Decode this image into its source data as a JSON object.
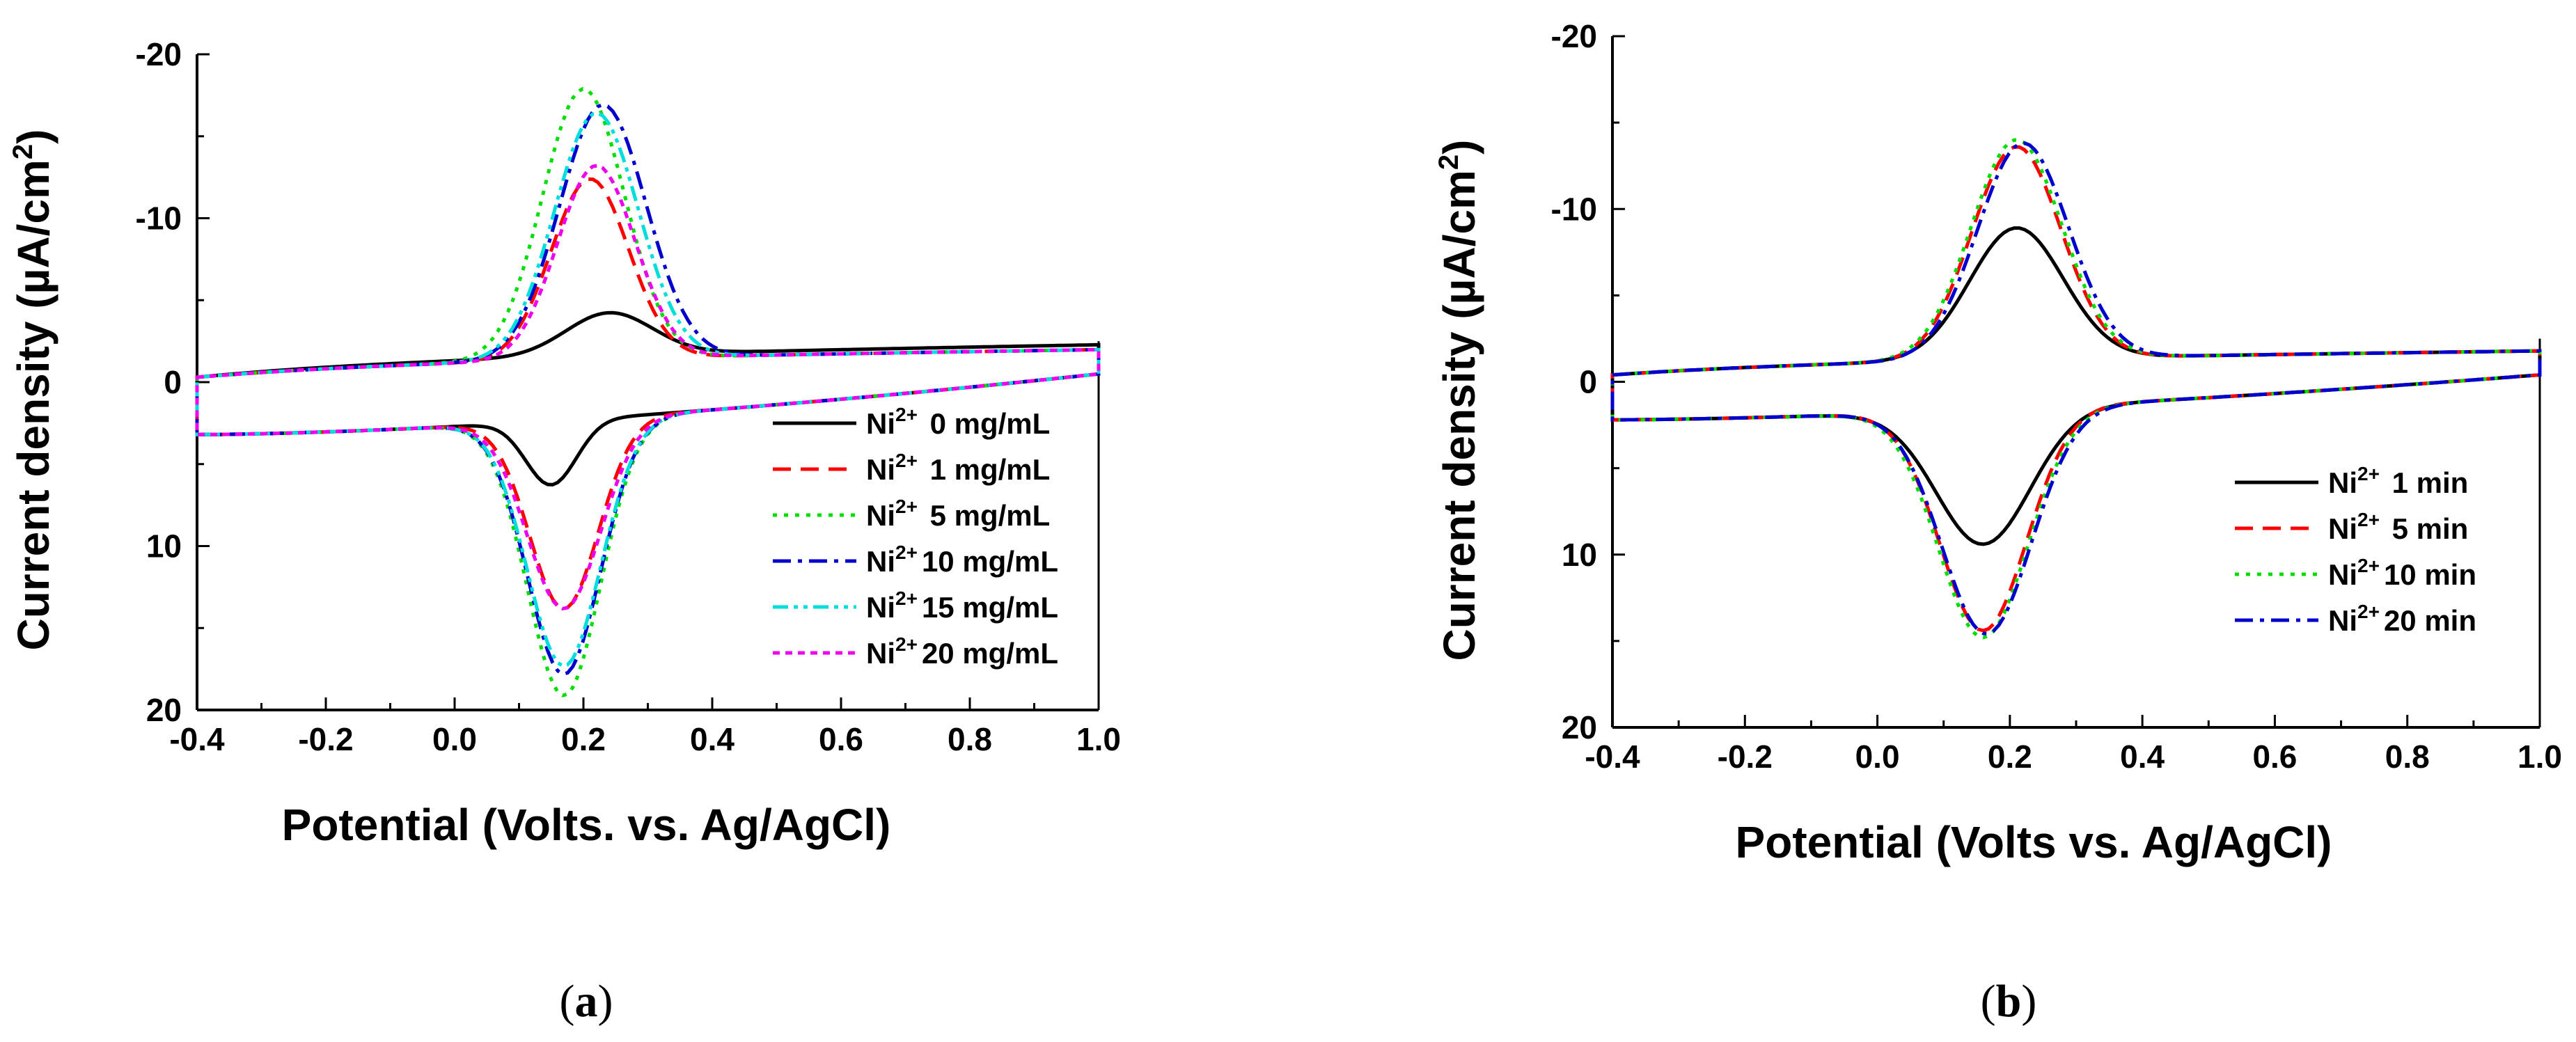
{
  "chart_data": [
    {
      "type": "line",
      "panel_label": "a",
      "xlabel": "Potential (Volts. vs. Ag/AgCl)",
      "ylabel_main": "Current density (",
      "ylabel_unit": "µA/cm",
      "ylabel_sup": "2",
      "ylabel_close": ")",
      "xlim": [
        -0.4,
        1.0
      ],
      "ylim": [
        20,
        -20
      ],
      "xticks": [
        "-0.4",
        "-0.2",
        "0.0",
        "0.2",
        "0.4",
        "0.6",
        "0.8",
        "1.0"
      ],
      "yticks": [
        "-20",
        "-10",
        "0",
        "10",
        "20"
      ],
      "legend_position": "bottom-right",
      "series": [
        {
          "ion": "Ni",
          "charge": "2+",
          "label": "  0 mg/mL",
          "color": "#000000",
          "dash": "solid",
          "ox_peak": -2.6,
          "ox_e": 0.24,
          "ox_w": 0.095,
          "red_peak": 3.9,
          "red_e": 0.15,
          "red_w": 0.055,
          "base_top_start": -0.3,
          "base_top_end": -2.3,
          "base_bot_start": 3.2,
          "base_bot_end": -0.5
        },
        {
          "ion": "Ni",
          "charge": "2+",
          "label": "  1 mg/mL",
          "color": "#ff0000",
          "dash": "dash",
          "ox_peak": -11.0,
          "ox_e": 0.21,
          "ox_w": 0.085,
          "red_peak": 11.5,
          "red_e": 0.17,
          "red_w": 0.075,
          "base_top_start": -0.3,
          "base_top_end": -2.0,
          "base_bot_start": 3.2,
          "base_bot_end": -0.5
        },
        {
          "ion": "Ni",
          "charge": "2+",
          "label": "  5 mg/mL",
          "color": "#00dd00",
          "dash": "dot",
          "ox_peak": -16.5,
          "ox_e": 0.2,
          "ox_w": 0.09,
          "red_peak": 16.8,
          "red_e": 0.17,
          "red_w": 0.08,
          "base_top_start": -0.3,
          "base_top_end": -2.0,
          "base_bot_start": 3.2,
          "base_bot_end": -0.5
        },
        {
          "ion": "Ni",
          "charge": "2+",
          "label": "10 mg/mL",
          "color": "#0000cc",
          "dash": "dashdot",
          "ox_peak": -15.5,
          "ox_e": 0.23,
          "ox_w": 0.095,
          "red_peak": 15.5,
          "red_e": 0.17,
          "red_w": 0.08,
          "base_top_start": -0.3,
          "base_top_end": -2.0,
          "base_bot_start": 3.2,
          "base_bot_end": -0.5
        },
        {
          "ion": "Ni",
          "charge": "2+",
          "label": "15 mg/mL",
          "color": "#00dddd",
          "dash": "dashdotdot",
          "ox_peak": -15.0,
          "ox_e": 0.22,
          "ox_w": 0.092,
          "red_peak": 15.0,
          "red_e": 0.17,
          "red_w": 0.08,
          "base_top_start": -0.3,
          "base_top_end": -2.0,
          "base_bot_start": 3.2,
          "base_bot_end": -0.5
        },
        {
          "ion": "Ni",
          "charge": "2+",
          "label": "20 mg/mL",
          "color": "#ee00ee",
          "dash": "shortdot",
          "ox_peak": -11.8,
          "ox_e": 0.22,
          "ox_w": 0.085,
          "red_peak": 11.5,
          "red_e": 0.17,
          "red_w": 0.08,
          "base_top_start": -0.3,
          "base_top_end": -2.0,
          "base_bot_start": 3.2,
          "base_bot_end": -0.5
        }
      ]
    },
    {
      "type": "line",
      "panel_label": "b",
      "xlabel": "Potential (Volts vs. Ag/AgCl)",
      "ylabel_main": "Current density (",
      "ylabel_unit": "µA/cm",
      "ylabel_sup": "2",
      "ylabel_close": ")",
      "xlim": [
        -0.4,
        1.0
      ],
      "ylim": [
        20,
        -20
      ],
      "xticks": [
        "-0.4",
        "-0.2",
        "0.0",
        "0.2",
        "0.4",
        "0.6",
        "0.8",
        "1.0"
      ],
      "yticks": [
        "-20",
        "-10",
        "0",
        "10",
        "20"
      ],
      "legend_position": "bottom-right",
      "series": [
        {
          "ion": "Ni",
          "charge": "2+",
          "label": "  1 min",
          "color": "#000000",
          "dash": "solid",
          "ox_peak": -7.6,
          "ox_e": 0.21,
          "ox_w": 0.1,
          "red_peak": 7.8,
          "red_e": 0.16,
          "red_w": 0.1,
          "base_top_start": -0.4,
          "base_top_end": -1.8,
          "base_bot_start": 2.2,
          "base_bot_end": -0.4
        },
        {
          "ion": "Ni",
          "charge": "2+",
          "label": "  5 min",
          "color": "#ff0000",
          "dash": "dash",
          "ox_peak": -12.3,
          "ox_e": 0.21,
          "ox_w": 0.095,
          "red_peak": 12.8,
          "red_e": 0.16,
          "red_w": 0.092,
          "base_top_start": -0.4,
          "base_top_end": -1.8,
          "base_bot_start": 2.2,
          "base_bot_end": -0.4
        },
        {
          "ion": "Ni",
          "charge": "2+",
          "label": "10 min",
          "color": "#00dd00",
          "dash": "dot",
          "ox_peak": -12.7,
          "ox_e": 0.21,
          "ox_w": 0.097,
          "red_peak": 13.2,
          "red_e": 0.16,
          "red_w": 0.095,
          "base_top_start": -0.4,
          "base_top_end": -1.8,
          "base_bot_start": 2.2,
          "base_bot_end": -0.4
        },
        {
          "ion": "Ni",
          "charge": "2+",
          "label": "20 min",
          "color": "#0000cc",
          "dash": "dashdot",
          "ox_peak": -12.5,
          "ox_e": 0.22,
          "ox_w": 0.097,
          "red_peak": 13.0,
          "red_e": 0.165,
          "red_w": 0.095,
          "base_top_start": -0.4,
          "base_top_end": -1.8,
          "base_bot_start": 2.2,
          "base_bot_end": -0.4
        }
      ]
    }
  ]
}
